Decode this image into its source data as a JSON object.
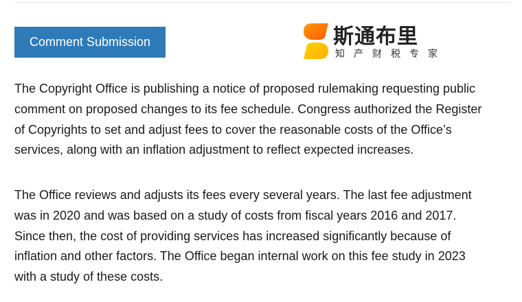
{
  "button": {
    "label": "Comment Submission",
    "color": "#2e7bb8"
  },
  "paragraphs": [
    {
      "lines": [
        "The Copyright Office is publishing a notice of proposed rulemaking requesting public",
        "comment on proposed changes to its fee schedule. Congress authorized the Register",
        "of Copyrights to set and adjust fees to cover the reasonable costs of the Office’s",
        "services, along with an inflation adjustment to reflect expected increases."
      ]
    },
    {
      "lines": [
        "The Office reviews and adjusts its fees every several years. The last fee adjustment",
        "was in 2020 and was based on a study of costs from fiscal years 2016 and 2017.",
        "Since then, the cost of providing services has increased significantly because of",
        "inflation and other factors. The Office began internal work on this fee study in 2023",
        "with a study of these costs."
      ]
    }
  ],
  "watermark": {
    "title": "斯通布里",
    "subtitle": "知产财税专家"
  }
}
